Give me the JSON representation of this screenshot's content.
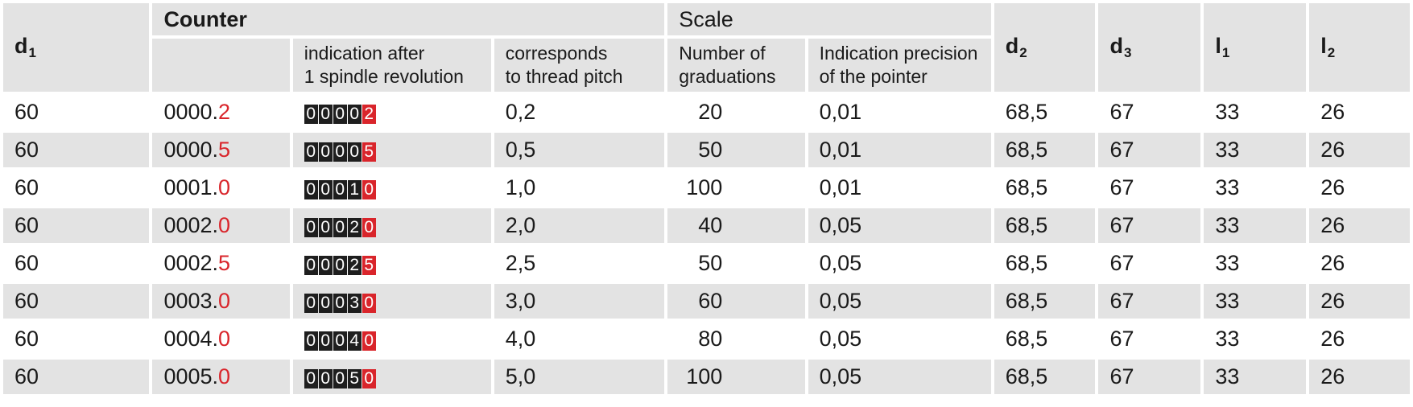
{
  "headers": {
    "d1": "d",
    "d1_sub": "1",
    "counter": "Counter",
    "scale": "Scale",
    "d2": "d",
    "d2_sub": "2",
    "d3": "d",
    "d3_sub": "3",
    "l1": "l",
    "l1_sub": "1",
    "l2": "l",
    "l2_sub": "2",
    "indication_line1": "indication after",
    "indication_line2": "1 spindle revolution",
    "corresponds_line1": "corresponds",
    "corresponds_line2": "to thread pitch",
    "graduations_line1": "Number of",
    "graduations_line2": "graduations",
    "precision_line1": "Indication precision",
    "precision_line2": "of the pointer"
  },
  "rows": [
    {
      "d1": "60",
      "counter_main": "0000.",
      "counter_dec": "2",
      "drum": [
        "0",
        "0",
        "0",
        "0",
        "2"
      ],
      "pitch": "0,2",
      "graduations": "20",
      "precision": "0,01",
      "d2": "68,5",
      "d3": "67",
      "l1": "33",
      "l2": "26"
    },
    {
      "d1": "60",
      "counter_main": "0000.",
      "counter_dec": "5",
      "drum": [
        "0",
        "0",
        "0",
        "0",
        "5"
      ],
      "pitch": "0,5",
      "graduations": "50",
      "precision": "0,01",
      "d2": "68,5",
      "d3": "67",
      "l1": "33",
      "l2": "26"
    },
    {
      "d1": "60",
      "counter_main": "0001.",
      "counter_dec": "0",
      "drum": [
        "0",
        "0",
        "0",
        "1",
        "0"
      ],
      "pitch": "1,0",
      "graduations": "100",
      "precision": "0,01",
      "d2": "68,5",
      "d3": "67",
      "l1": "33",
      "l2": "26"
    },
    {
      "d1": "60",
      "counter_main": "0002.",
      "counter_dec": "0",
      "drum": [
        "0",
        "0",
        "0",
        "2",
        "0"
      ],
      "pitch": "2,0",
      "graduations": "40",
      "precision": "0,05",
      "d2": "68,5",
      "d3": "67",
      "l1": "33",
      "l2": "26"
    },
    {
      "d1": "60",
      "counter_main": "0002.",
      "counter_dec": "5",
      "drum": [
        "0",
        "0",
        "0",
        "2",
        "5"
      ],
      "pitch": "2,5",
      "graduations": "50",
      "precision": "0,05",
      "d2": "68,5",
      "d3": "67",
      "l1": "33",
      "l2": "26"
    },
    {
      "d1": "60",
      "counter_main": "0003.",
      "counter_dec": "0",
      "drum": [
        "0",
        "0",
        "0",
        "3",
        "0"
      ],
      "pitch": "3,0",
      "graduations": "60",
      "precision": "0,05",
      "d2": "68,5",
      "d3": "67",
      "l1": "33",
      "l2": "26"
    },
    {
      "d1": "60",
      "counter_main": "0004.",
      "counter_dec": "0",
      "drum": [
        "0",
        "0",
        "0",
        "4",
        "0"
      ],
      "pitch": "4,0",
      "graduations": "80",
      "precision": "0,05",
      "d2": "68,5",
      "d3": "67",
      "l1": "33",
      "l2": "26"
    },
    {
      "d1": "60",
      "counter_main": "0005.",
      "counter_dec": "0",
      "drum": [
        "0",
        "0",
        "0",
        "5",
        "0"
      ],
      "pitch": "5,0",
      "graduations": "100",
      "precision": "0,05",
      "d2": "68,5",
      "d3": "67",
      "l1": "33",
      "l2": "26"
    }
  ],
  "colors": {
    "header_bg": "#e3e3e3",
    "stripe_bg": "#e3e3e3",
    "accent_red": "#d9252b",
    "drum_black": "#1e1e1e"
  }
}
